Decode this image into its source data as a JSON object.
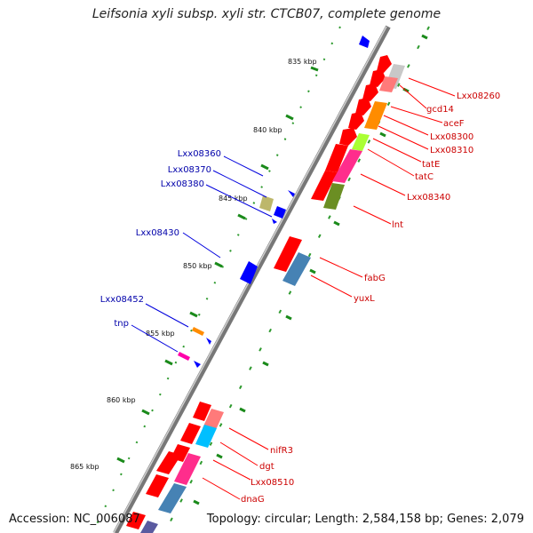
{
  "title": "Leifsonia xyli subsp. xyli str. CTCB07, complete genome",
  "footer": {
    "accession": "Accession: NC_006087",
    "topology": "Topology: circular; Length: 2,584,158 bp; Genes: 2,079"
  },
  "colors": {
    "backbone": "#888888",
    "forward_gene": "#ff0000",
    "label_forward": "#cc0000",
    "label_reverse": "#0000aa",
    "gc_tick": "#1a8a1a"
  },
  "kbp_marks": [
    "835 kbp",
    "840 kbp",
    "845 kbp",
    "850 kbp",
    "855 kbp",
    "860 kbp",
    "865 kbp"
  ],
  "forward_labels": [
    "Lxx08260",
    "gcd14",
    "aceF",
    "Lxx08300",
    "Lxx08310",
    "tatE",
    "tatC",
    "Lxx08340",
    "lnt",
    "fabG",
    "yuxL",
    "nifR3",
    "dgt",
    "Lxx08510",
    "dnaG"
  ],
  "reverse_labels": [
    "Lxx08360",
    "Lxx08370",
    "Lxx08380",
    "Lxx08430",
    "Lxx08452",
    "tnp"
  ]
}
